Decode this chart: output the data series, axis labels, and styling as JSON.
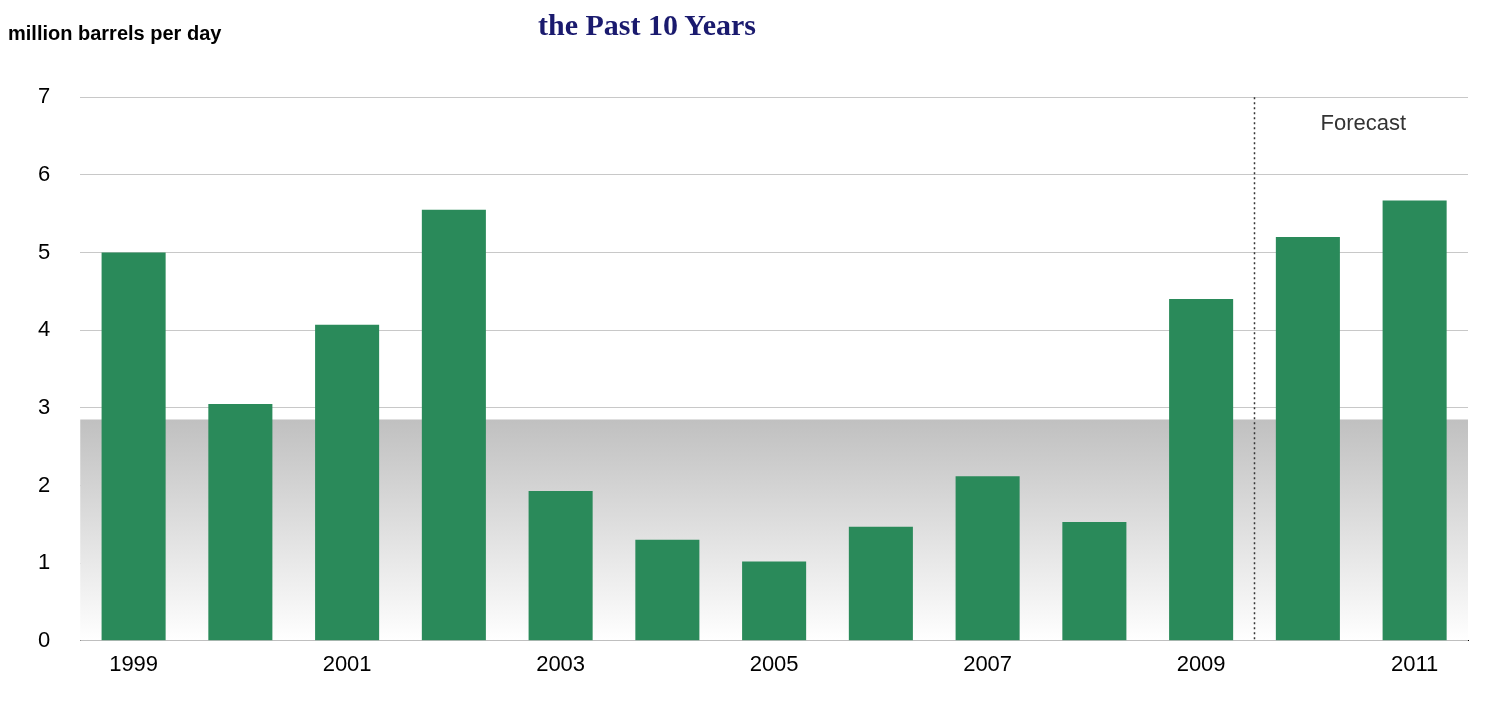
{
  "chart_data": {
    "type": "bar",
    "title": "the Past 10 Years",
    "ylabel": "million barrels per day",
    "x": [
      1999,
      2000,
      2001,
      2002,
      2003,
      2004,
      2005,
      2006,
      2007,
      2008,
      2009,
      2010,
      2011
    ],
    "values": [
      5.0,
      3.05,
      4.07,
      5.55,
      1.93,
      1.3,
      1.02,
      1.47,
      2.12,
      1.53,
      4.4,
      5.2,
      5.67
    ],
    "color": "#2a8a5a",
    "xlim": [
      1998.5,
      2011.5
    ],
    "xticks": [
      1999,
      2001,
      2003,
      2005,
      2007,
      2009,
      2011
    ],
    "ylim": [
      0,
      7
    ],
    "yticks": [
      0,
      1,
      2,
      3,
      4,
      5,
      6,
      7
    ],
    "grid": "y",
    "legend": false,
    "ref_lines": [
      {
        "axis": "x",
        "value": 2009.5,
        "label": "Forecast",
        "line_style": "dotted",
        "color": "#333333"
      }
    ],
    "bands": [
      {
        "axis": "y",
        "from": 0,
        "to": 2.85,
        "color": "#c0c0c0"
      }
    ]
  }
}
